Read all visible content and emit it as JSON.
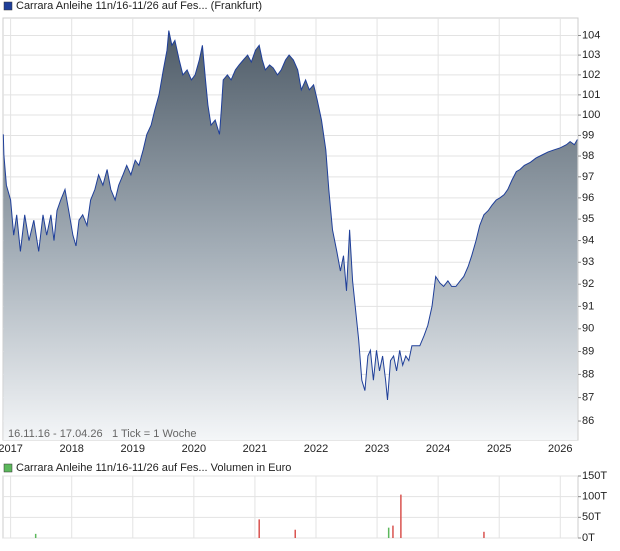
{
  "chart_data": [
    {
      "type": "area",
      "annotations": [
        "16.11.16 - 17.04.26",
        "1 Tick = 1 Woche"
      ],
      "log_scale": true,
      "grid": true,
      "xlim": [
        2016.875,
        2026.29
      ],
      "xticks": [
        2017,
        2018,
        2019,
        2020,
        2021,
        2022,
        2023,
        2024,
        2025,
        2026
      ],
      "ylim": [
        85.2,
        104.9
      ],
      "yticks": [
        86,
        87,
        88,
        89,
        90,
        91,
        92,
        93,
        94,
        95,
        96,
        97,
        98,
        99,
        100,
        101,
        102,
        103,
        104
      ],
      "x": [
        2016.88,
        2016.89,
        2016.93,
        2017.0,
        2017.05,
        2017.1,
        2017.16,
        2017.23,
        2017.3,
        2017.38,
        2017.46,
        2017.53,
        2017.59,
        2017.66,
        2017.71,
        2017.76,
        2017.82,
        2017.89,
        2017.95,
        2018.02,
        2018.07,
        2018.12,
        2018.18,
        2018.25,
        2018.31,
        2018.38,
        2018.44,
        2018.51,
        2018.58,
        2018.64,
        2018.71,
        2018.77,
        2018.84,
        2018.9,
        2018.97,
        2019.04,
        2019.1,
        2019.17,
        2019.23,
        2019.3,
        2019.36,
        2019.43,
        2019.5,
        2019.56,
        2019.59,
        2019.64,
        2019.69,
        2019.76,
        2019.82,
        2019.89,
        2019.96,
        2020.02,
        2020.09,
        2020.14,
        2020.19,
        2020.23,
        2020.28,
        2020.35,
        2020.42,
        2020.45,
        2020.48,
        2020.55,
        2020.61,
        2020.68,
        2020.74,
        2020.81,
        2020.88,
        2020.94,
        2021.01,
        2021.07,
        2021.12,
        2021.17,
        2021.24,
        2021.3,
        2021.37,
        2021.43,
        2021.5,
        2021.56,
        2021.63,
        2021.7,
        2021.76,
        2021.83,
        2021.89,
        2021.96,
        2022.02,
        2022.09,
        2022.16,
        2022.21,
        2022.27,
        2022.34,
        2022.4,
        2022.45,
        2022.5,
        2022.55,
        2022.6,
        2022.65,
        2022.7,
        2022.75,
        2022.8,
        2022.85,
        2022.89,
        2022.94,
        2022.99,
        2023.04,
        2023.09,
        2023.14,
        2023.17,
        2023.22,
        2023.27,
        2023.32,
        2023.37,
        2023.42,
        2023.47,
        2023.52,
        2023.57,
        2023.63,
        2023.7,
        2023.77,
        2023.83,
        2023.9,
        2023.96,
        2024.03,
        2024.09,
        2024.16,
        2024.22,
        2024.29,
        2024.36,
        2024.42,
        2024.49,
        2024.55,
        2024.62,
        2024.68,
        2024.75,
        2024.82,
        2024.88,
        2024.95,
        2025.01,
        2025.08,
        2025.14,
        2025.21,
        2025.28,
        2025.34,
        2025.41,
        2025.51,
        2025.6,
        2025.7,
        2025.8,
        2025.9,
        2026.0,
        2026.1,
        2026.16,
        2026.23,
        2026.28
      ],
      "series": [
        {
          "name": "Carrara Anleihe 11n/16-11/26 auf Fes... (Frankfurt)",
          "color": "#1f3f99",
          "values": [
            99.05,
            98.05,
            96.6,
            95.9,
            94.25,
            95.2,
            93.5,
            95.2,
            94.0,
            94.95,
            93.5,
            95.2,
            94.25,
            95.2,
            94.0,
            95.4,
            95.9,
            96.4,
            95.4,
            94.25,
            93.75,
            94.95,
            95.2,
            94.7,
            95.9,
            96.4,
            97.1,
            96.6,
            97.35,
            96.4,
            95.9,
            96.6,
            97.1,
            97.55,
            97.1,
            97.8,
            97.55,
            98.3,
            99.05,
            99.5,
            100.25,
            101.0,
            102.25,
            103.25,
            104.25,
            103.5,
            103.75,
            102.75,
            102.0,
            102.25,
            101.75,
            102.0,
            102.75,
            103.5,
            101.75,
            100.5,
            99.5,
            99.75,
            99.05,
            100.25,
            101.75,
            102.0,
            101.75,
            102.25,
            102.5,
            102.75,
            103.0,
            102.65,
            103.25,
            103.5,
            102.75,
            102.25,
            102.5,
            102.35,
            102.0,
            102.25,
            102.75,
            103.0,
            102.75,
            102.25,
            101.25,
            101.75,
            101.25,
            101.5,
            100.75,
            99.75,
            98.3,
            96.4,
            94.5,
            93.5,
            92.6,
            93.3,
            91.7,
            94.5,
            92.15,
            90.8,
            89.5,
            87.75,
            87.3,
            88.8,
            89.05,
            87.75,
            89.05,
            88.15,
            88.8,
            87.75,
            86.9,
            88.6,
            88.8,
            88.15,
            89.05,
            88.4,
            88.8,
            88.6,
            89.25,
            89.25,
            89.25,
            89.7,
            90.15,
            91.0,
            92.35,
            92.05,
            91.9,
            92.15,
            91.9,
            91.9,
            92.15,
            92.35,
            92.8,
            93.3,
            94.0,
            94.7,
            95.2,
            95.4,
            95.65,
            95.9,
            96.0,
            96.15,
            96.4,
            96.85,
            97.25,
            97.35,
            97.55,
            97.7,
            97.9,
            98.05,
            98.2,
            98.3,
            98.4,
            98.55,
            98.7,
            98.55,
            98.8
          ]
        }
      ]
    },
    {
      "type": "bar",
      "grid": true,
      "xlim": [
        2016.875,
        2026.29
      ],
      "ylim": [
        0,
        150000
      ],
      "yticks": [
        {
          "value": 0,
          "label": "0T"
        },
        {
          "value": 50000,
          "label": "50T"
        },
        {
          "value": 100000,
          "label": "100T"
        },
        {
          "value": 150000,
          "label": "150T"
        }
      ],
      "x": [
        2017.41,
        2021.07,
        2021.66,
        2023.19,
        2023.26,
        2023.39,
        2024.75
      ],
      "series": [
        {
          "name": "Carrara Anleihe 11n/16-11/26 auf Fes... Volumen in Euro",
          "color": "#5cb85c",
          "values": [
            10000,
            45000,
            20000,
            25000,
            30000,
            105000,
            15000
          ],
          "colors": [
            "#5cb85c",
            "#d9534f",
            "#d9534f",
            "#5cb85c",
            "#d9534f",
            "#d9534f",
            "#d9534f"
          ]
        }
      ]
    }
  ]
}
